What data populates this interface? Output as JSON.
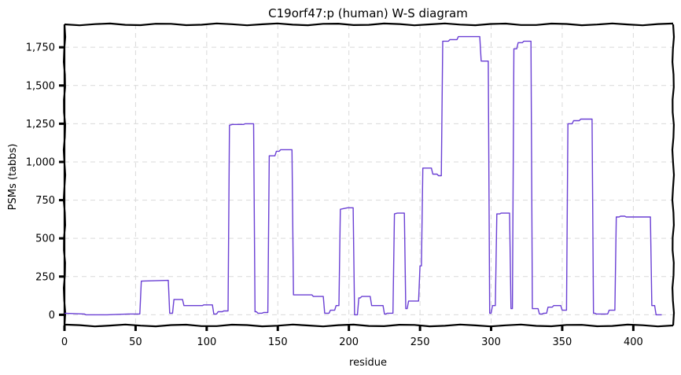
{
  "chart_data": {
    "type": "line",
    "title": "C19orf47:p (human) W-S diagram",
    "xlabel": "residue",
    "ylabel": "PSMs (tabbs)",
    "xlim": [
      0,
      428
    ],
    "ylim": [
      -70,
      1900
    ],
    "xticks": [
      0,
      50,
      100,
      150,
      200,
      250,
      300,
      350,
      400
    ],
    "xtick_labels": [
      "0",
      "50",
      "100",
      "150",
      "200",
      "250",
      "300",
      "350",
      "400"
    ],
    "yticks": [
      0,
      250,
      500,
      750,
      1000,
      1250,
      1500,
      1750
    ],
    "ytick_labels": [
      "0",
      "250",
      "500",
      "750",
      "1,000",
      "1,250",
      "1,500",
      "1,750"
    ],
    "grid": true,
    "color": "#6a3fd4",
    "series": [
      {
        "x": [
          0,
          14,
          15,
          30,
          45,
          53,
          54,
          73,
          74,
          76,
          77,
          83,
          84,
          93,
          94,
          97,
          98,
          104,
          105,
          107,
          108,
          111,
          112,
          115,
          116,
          118,
          119,
          126,
          127,
          133,
          134,
          135,
          136,
          139,
          140,
          143,
          144,
          148,
          149,
          151,
          152,
          158,
          159,
          160,
          161,
          168,
          169,
          174,
          175,
          182,
          183,
          186,
          187,
          190,
          191,
          193,
          194,
          199,
          200,
          203,
          204,
          206,
          207,
          208,
          209,
          215,
          216,
          219,
          220,
          224,
          225,
          226,
          227,
          231,
          232,
          234,
          235,
          239,
          240,
          241,
          242,
          249,
          250,
          251,
          252,
          258,
          259,
          262,
          263,
          265,
          266,
          270,
          271,
          276,
          277,
          289,
          290,
          292,
          293,
          298,
          299,
          300,
          301,
          303,
          304,
          306,
          307,
          313,
          314,
          315,
          316,
          318,
          319,
          322,
          323,
          328,
          329,
          333,
          334,
          336,
          337,
          339,
          340,
          343,
          344,
          349,
          350,
          353,
          354,
          357,
          358,
          362,
          363,
          371,
          372,
          373,
          374,
          382,
          383,
          387,
          388,
          390,
          391,
          394,
          395,
          412,
          413,
          415,
          416,
          420
        ],
        "y": [
          10,
          5,
          0,
          0,
          5,
          5,
          220,
          225,
          10,
          10,
          100,
          100,
          60,
          60,
          60,
          60,
          65,
          65,
          5,
          5,
          20,
          20,
          25,
          25,
          1240,
          1245,
          1245,
          1245,
          1250,
          1250,
          20,
          20,
          10,
          10,
          15,
          15,
          1040,
          1040,
          1070,
          1070,
          1080,
          1080,
          1080,
          1080,
          130,
          130,
          130,
          130,
          120,
          120,
          10,
          10,
          30,
          30,
          60,
          60,
          690,
          700,
          700,
          700,
          0,
          0,
          110,
          110,
          120,
          120,
          60,
          60,
          60,
          60,
          5,
          5,
          10,
          10,
          660,
          665,
          665,
          665,
          40,
          40,
          90,
          90,
          320,
          320,
          960,
          960,
          920,
          920,
          910,
          910,
          1790,
          1790,
          1800,
          1800,
          1820,
          1820,
          1820,
          1820,
          1660,
          1660,
          10,
          10,
          60,
          60,
          660,
          660,
          665,
          665,
          40,
          40,
          1740,
          1740,
          1780,
          1780,
          1790,
          1790,
          40,
          40,
          5,
          5,
          10,
          10,
          50,
          50,
          60,
          60,
          30,
          30,
          1250,
          1250,
          1270,
          1270,
          1280,
          1280,
          10,
          10,
          5,
          5,
          30,
          30,
          640,
          640,
          645,
          645,
          640,
          640,
          60,
          60,
          0,
          0
        ]
      }
    ]
  }
}
